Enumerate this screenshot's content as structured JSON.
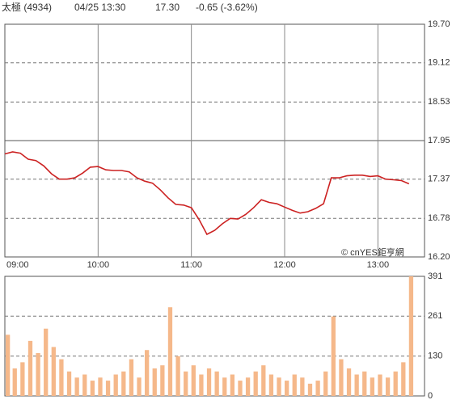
{
  "chart_data": [
    {
      "type": "line",
      "title": "太極 (4934)",
      "subtitle": "04/25 13:30",
      "last": "17.30",
      "change": "-0.65 (-3.62%)",
      "annotation": "© cnYES鉅亨網",
      "header_color": "#22aa22",
      "color": "#cc2222",
      "grid": true,
      "x": [
        "09:00",
        "09:05",
        "09:10",
        "09:15",
        "09:20",
        "09:25",
        "09:30",
        "09:35",
        "09:40",
        "09:45",
        "09:50",
        "09:55",
        "10:00",
        "10:05",
        "10:10",
        "10:15",
        "10:20",
        "10:25",
        "10:30",
        "10:35",
        "10:40",
        "10:45",
        "10:50",
        "10:55",
        "11:00",
        "11:05",
        "11:10",
        "11:15",
        "11:20",
        "11:25",
        "11:30",
        "11:35",
        "11:40",
        "11:45",
        "11:50",
        "11:55",
        "12:00",
        "12:05",
        "12:10",
        "12:15",
        "12:20",
        "12:25",
        "12:30",
        "12:35",
        "12:40",
        "12:45",
        "12:50",
        "12:55",
        "13:00",
        "13:05",
        "13:10",
        "13:15",
        "13:20"
      ],
      "values": [
        17.75,
        17.78,
        17.76,
        17.67,
        17.65,
        17.57,
        17.45,
        17.37,
        17.37,
        17.39,
        17.46,
        17.55,
        17.56,
        17.51,
        17.5,
        17.5,
        17.48,
        17.39,
        17.34,
        17.31,
        17.21,
        17.09,
        16.99,
        16.98,
        16.94,
        16.76,
        16.54,
        16.6,
        16.7,
        16.78,
        16.77,
        16.84,
        16.94,
        17.06,
        17.02,
        17.0,
        16.95,
        16.9,
        16.86,
        16.88,
        16.93,
        17.0,
        17.39,
        17.39,
        17.42,
        17.43,
        17.43,
        17.41,
        17.42,
        17.37,
        17.36,
        17.35,
        17.3
      ],
      "xlim": [
        "09:00",
        "13:30"
      ],
      "xticks": [
        "09:00",
        "10:00",
        "11:00",
        "12:00",
        "13:00"
      ],
      "ylim": [
        16.2,
        19.7
      ],
      "yticks": [
        {
          "value": 16.2,
          "label": "16.20"
        },
        16.78,
        17.37,
        17.95,
        18.53,
        19.12,
        {
          "value": 19.7,
          "label": "19.70"
        }
      ]
    },
    {
      "type": "bar",
      "color": "#f5b88a",
      "grid": true,
      "x": [
        "09:00",
        "09:05",
        "09:10",
        "09:15",
        "09:20",
        "09:25",
        "09:30",
        "09:35",
        "09:40",
        "09:45",
        "09:50",
        "09:55",
        "10:00",
        "10:05",
        "10:10",
        "10:15",
        "10:20",
        "10:25",
        "10:30",
        "10:35",
        "10:40",
        "10:45",
        "10:50",
        "10:55",
        "11:00",
        "11:05",
        "11:10",
        "11:15",
        "11:20",
        "11:25",
        "11:30",
        "11:35",
        "11:40",
        "11:45",
        "11:50",
        "11:55",
        "12:00",
        "12:05",
        "12:10",
        "12:15",
        "12:20",
        "12:25",
        "12:30",
        "12:35",
        "12:40",
        "12:45",
        "12:50",
        "12:55",
        "13:00",
        "13:05",
        "13:10",
        "13:15",
        "13:20"
      ],
      "values": [
        200,
        90,
        110,
        180,
        140,
        220,
        160,
        120,
        80,
        60,
        70,
        50,
        60,
        50,
        70,
        80,
        120,
        60,
        150,
        90,
        100,
        290,
        130,
        80,
        100,
        70,
        90,
        80,
        60,
        70,
        50,
        60,
        80,
        100,
        70,
        60,
        50,
        70,
        60,
        40,
        50,
        80,
        260,
        120,
        90,
        70,
        80,
        60,
        70,
        60,
        80,
        110,
        391
      ],
      "xlim": [
        "09:00",
        "13:30"
      ],
      "ylim": [
        0,
        391
      ],
      "yticks": [
        0,
        130,
        261,
        391
      ]
    }
  ]
}
